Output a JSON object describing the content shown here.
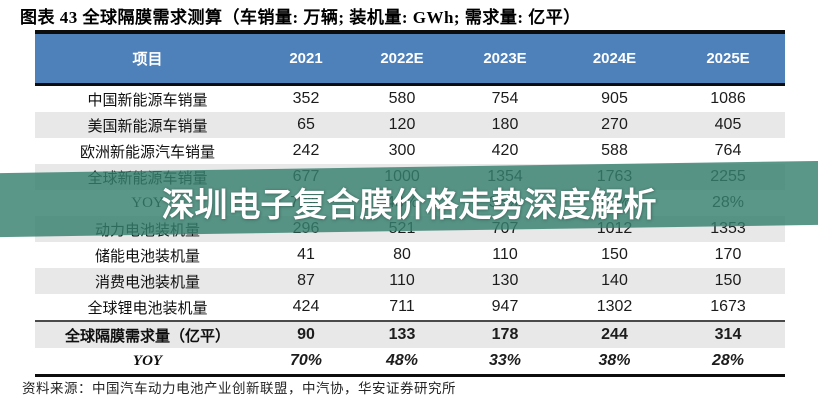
{
  "title": "图表 43 全球隔膜需求测算（车销量: 万辆; 装机量: GWh; 需求量: 亿平）",
  "watermark": "深圳电子复合膜价格走势深度解析",
  "source": "资料来源：中国汽车动力电池产业创新联盟，中汽协，华安证券研究所",
  "colors": {
    "header_blue": "#4e80b9",
    "stripe_gray": "#e8e8e8",
    "watermark_teal": "rgba(55,128,111,0.82)",
    "rule_black": "#0d0d0d"
  },
  "chart_data": {
    "type": "table",
    "title": "全球隔膜需求测算",
    "units": "车销量: 万辆; 装机量: GWh; 需求量: 亿平",
    "columns": [
      "项目",
      "2021",
      "2022E",
      "2023E",
      "2024E",
      "2025E"
    ],
    "rows": [
      {
        "label": "中国新能源车销量",
        "values": [
          "352",
          "580",
          "754",
          "905",
          "1086"
        ],
        "bold": false,
        "italic": false,
        "separator": false
      },
      {
        "label": "美国新能源车销量",
        "values": [
          "65",
          "120",
          "180",
          "270",
          "405"
        ],
        "bold": false,
        "italic": false,
        "separator": false
      },
      {
        "label": "欧洲新能源汽车销量",
        "values": [
          "242",
          "300",
          "420",
          "588",
          "764"
        ],
        "bold": false,
        "italic": false,
        "separator": false
      },
      {
        "label": "全球新能源车销量",
        "values": [
          "677",
          "1000",
          "1354",
          "1763",
          "2255"
        ],
        "bold": false,
        "italic": false,
        "separator": false
      },
      {
        "label": "YOY",
        "values": [
          "72%",
          "48%",
          "35%",
          "30%",
          "28%"
        ],
        "bold": false,
        "italic": false,
        "separator": false
      },
      {
        "label": "动力电池装机量",
        "values": [
          "296",
          "521",
          "707",
          "1012",
          "1353"
        ],
        "bold": false,
        "italic": false,
        "separator": false
      },
      {
        "label": "储能电池装机量",
        "values": [
          "41",
          "80",
          "110",
          "150",
          "170"
        ],
        "bold": false,
        "italic": false,
        "separator": false
      },
      {
        "label": "消费电池装机量",
        "values": [
          "87",
          "110",
          "130",
          "140",
          "150"
        ],
        "bold": false,
        "italic": false,
        "separator": false
      },
      {
        "label": "全球锂电池装机量",
        "values": [
          "424",
          "711",
          "947",
          "1302",
          "1673"
        ],
        "bold": false,
        "italic": false,
        "separator": false
      },
      {
        "label": "全球隔膜需求量（亿平）",
        "values": [
          "90",
          "133",
          "178",
          "244",
          "314"
        ],
        "bold": true,
        "italic": false,
        "separator": true
      },
      {
        "label": "YOY",
        "values": [
          "70%",
          "48%",
          "33%",
          "38%",
          "28%"
        ],
        "bold": true,
        "italic": true,
        "separator": false
      }
    ]
  }
}
